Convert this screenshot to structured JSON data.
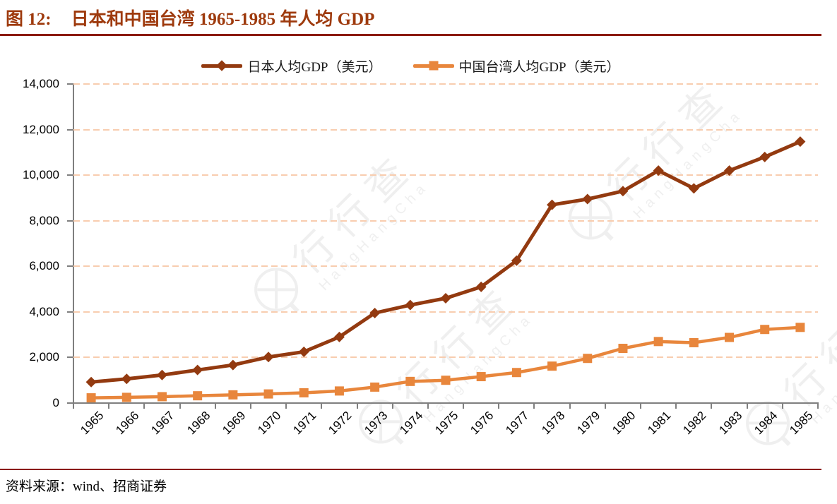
{
  "title": {
    "prefix": "图 12:",
    "text": "日本和中国台湾 1965-1985 年人均 GDP"
  },
  "legend": [
    {
      "label": "日本人均GDP（美元）",
      "marker": "diamond",
      "color": "#933A10"
    },
    {
      "label": "中国台湾人均GDP（美元）",
      "marker": "square",
      "color": "#E8863C"
    }
  ],
  "source": {
    "label": "资料来源：",
    "text": "wind、招商证券"
  },
  "watermark": {
    "text": "行行查",
    "subtext": "HangHangCha"
  },
  "colors": {
    "title": "#9E3A0D",
    "rule": "#8B1A10",
    "japan_line": "#933A10",
    "taiwan_line": "#E8863C",
    "gridline": "#F8CDAF",
    "axis": "#7F7F7F"
  },
  "chart_data": {
    "type": "line",
    "title": "日本和中国台湾 1965-1985 年人均 GDP",
    "xlabel": "",
    "ylabel": "",
    "categories": [
      "1965",
      "1966",
      "1967",
      "1968",
      "1969",
      "1970",
      "1971",
      "1972",
      "1973",
      "1974",
      "1975",
      "1976",
      "1977",
      "1978",
      "1979",
      "1980",
      "1981",
      "1982",
      "1983",
      "1984",
      "1985"
    ],
    "series": [
      {
        "name": "日本人均GDP（美元）",
        "marker": "diamond",
        "color": "#933A10",
        "values": [
          920,
          1060,
          1230,
          1450,
          1670,
          2020,
          2250,
          2900,
          3950,
          4300,
          4600,
          5100,
          6250,
          8700,
          8950,
          9300,
          10200,
          9420,
          10200,
          10800,
          11470
        ]
      },
      {
        "name": "中国台湾人均GDP（美元）",
        "marker": "square",
        "color": "#E8863C",
        "values": [
          230,
          250,
          280,
          320,
          360,
          400,
          450,
          530,
          700,
          950,
          1000,
          1160,
          1340,
          1620,
          1960,
          2400,
          2700,
          2650,
          2880,
          3230,
          3320
        ]
      }
    ],
    "ylim": [
      0,
      14000
    ],
    "y_tick_step": 2000,
    "y_tick_labels": [
      "0",
      "2,000",
      "4,000",
      "6,000",
      "8,000",
      "10,000",
      "12,000",
      "14,000"
    ],
    "grid": "horizontal-dashed",
    "legend_position": "top-center"
  }
}
